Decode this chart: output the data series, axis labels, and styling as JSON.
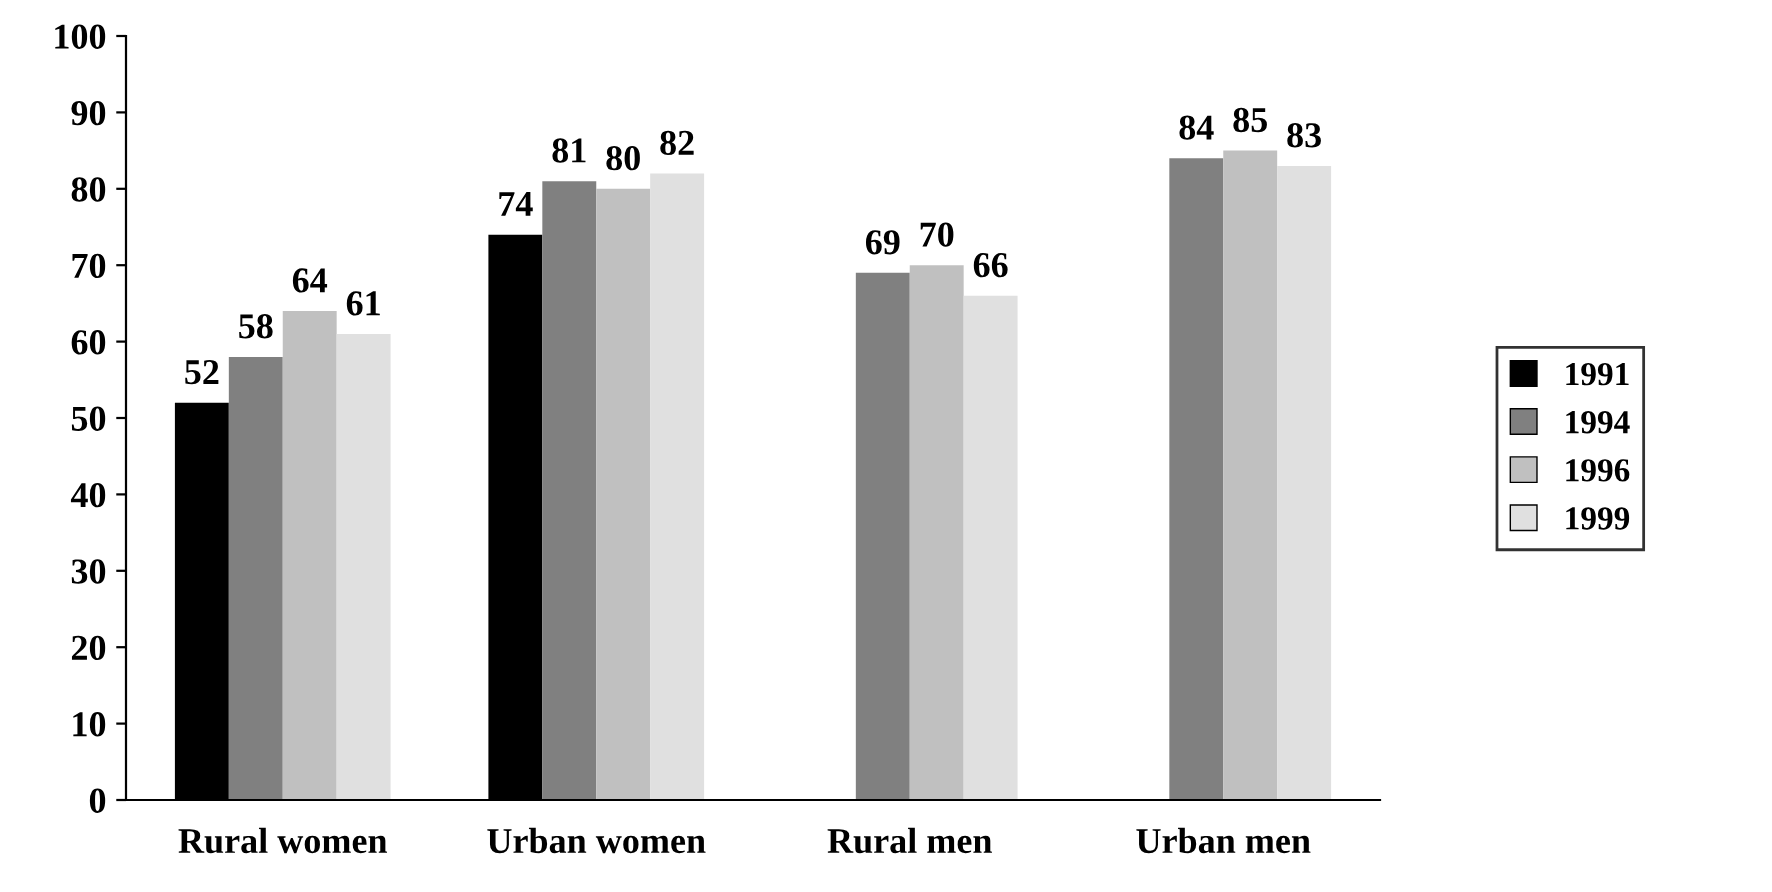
{
  "chart_data": {
    "type": "bar",
    "categories": [
      "Rural women",
      "Urban women",
      "Rural men",
      "Urban men"
    ],
    "series": [
      {
        "name": "1991",
        "color": "#000000",
        "values": [
          52,
          74,
          null,
          null
        ]
      },
      {
        "name": "1994",
        "color": "#808080",
        "values": [
          58,
          81,
          69,
          84
        ]
      },
      {
        "name": "1996",
        "color": "#c0c0c0",
        "values": [
          64,
          80,
          70,
          85
        ]
      },
      {
        "name": "1999",
        "color": "#e0e0e0",
        "values": [
          61,
          82,
          66,
          83
        ]
      }
    ],
    "ylim": [
      0,
      100
    ],
    "yticks": [
      0,
      10,
      20,
      30,
      40,
      50,
      60,
      70,
      80,
      90,
      100
    ],
    "grid": false,
    "legend": "right",
    "data_labels": true
  }
}
